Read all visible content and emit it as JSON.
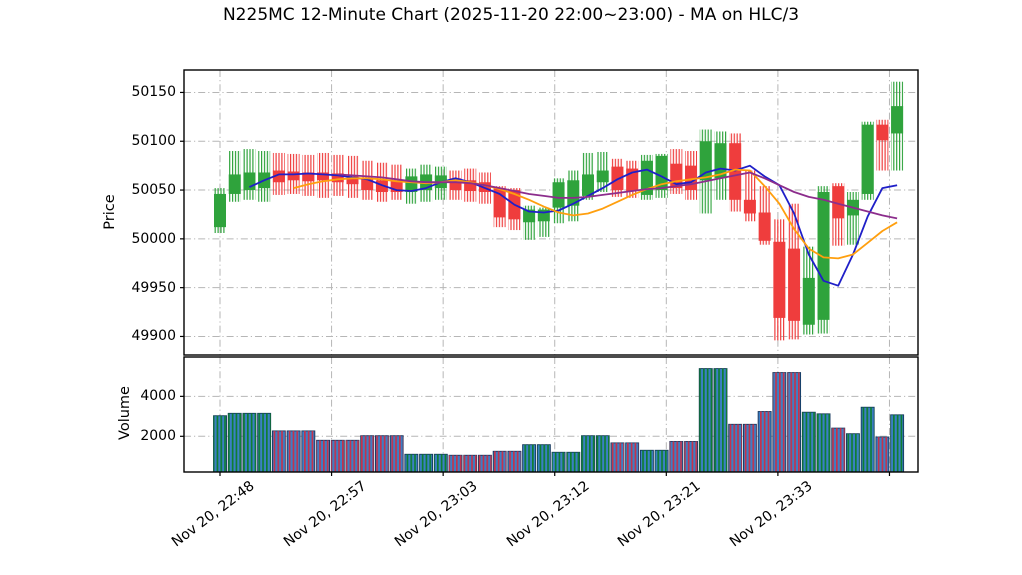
{
  "title": "N225MC 12-Minute Chart (2025-11-20 22:00~23:00) - MA on HLC/3",
  "colors": {
    "background": "#ffffff",
    "up": "#2fa33c",
    "down": "#ef3d3d",
    "volume_fill": "#3b7fc4",
    "volume_edge": "#14365c",
    "volume_hatch_up": "#0e7e33",
    "volume_hatch_down": "#c2334d",
    "ma_fast": "#1f1fc8",
    "ma_mid": "#ff9f0e",
    "ma_slow": "#8c2d8c",
    "grid": "#b6b6b6",
    "spine": "#000000"
  },
  "axes": {
    "price": {
      "label": "Price",
      "ticks": [
        50150,
        50100,
        50050,
        50000,
        49950,
        49900
      ]
    },
    "volume": {
      "label": "Volume",
      "ticks": [
        4000,
        2000
      ]
    },
    "x": {
      "ticks": [
        {
          "pos": 0,
          "label": "Nov 20, 22:48"
        },
        {
          "pos": 7.58,
          "label": "Nov 20, 22:57"
        },
        {
          "pos": 15.16,
          "label": "Nov 20, 23:03"
        },
        {
          "pos": 22.74,
          "label": "Nov 20, 23:12"
        },
        {
          "pos": 30.32,
          "label": "Nov 20, 23:21"
        },
        {
          "pos": 37.9,
          "label": "Nov 20, 23:33"
        },
        {
          "pos": 45.48,
          "label": ""
        }
      ]
    }
  },
  "chart_data": {
    "type": "candlestick+volume",
    "title": "N225MC 12-Minute Chart (2025-11-20 22:00~23:00) - MA on HLC/3",
    "price_ylim": [
      49881,
      50173
    ],
    "volume_ylim": [
      213,
      5970
    ],
    "grid": true,
    "ohlcv_columns": [
      "open",
      "high",
      "low",
      "close",
      "volume"
    ],
    "candles": [
      [
        50012,
        50052,
        50006,
        50046,
        3030
      ],
      [
        50046,
        50090,
        50038,
        50066,
        3150
      ],
      [
        50050,
        50092,
        50040,
        50068,
        3150
      ],
      [
        50052,
        50090,
        50038,
        50068,
        3150
      ],
      [
        50070,
        50088,
        50045,
        50058,
        2270
      ],
      [
        50069,
        50087,
        50046,
        50060,
        2270
      ],
      [
        50068,
        50086,
        50044,
        50059,
        2270
      ],
      [
        50068,
        50088,
        50042,
        50060,
        1800
      ],
      [
        50067,
        50086,
        50044,
        50058,
        1800
      ],
      [
        50064,
        50085,
        50042,
        50056,
        1800
      ],
      [
        50062,
        50080,
        50040,
        50050,
        2030
      ],
      [
        50060,
        50078,
        50038,
        50048,
        2030
      ],
      [
        50060,
        50076,
        50040,
        50048,
        2030
      ],
      [
        50048,
        50072,
        50036,
        50064,
        1100
      ],
      [
        50050,
        50076,
        50038,
        50066,
        1100
      ],
      [
        50052,
        50074,
        50040,
        50065,
        1100
      ],
      [
        50062,
        50070,
        50040,
        50050,
        1050
      ],
      [
        50060,
        50072,
        50038,
        50049,
        1050
      ],
      [
        50058,
        50068,
        50036,
        50048,
        1050
      ],
      [
        50052,
        50054,
        50012,
        50022,
        1250
      ],
      [
        50050,
        50052,
        50009,
        50020,
        1250
      ],
      [
        50017,
        50034,
        49999,
        50030,
        1580
      ],
      [
        50018,
        50032,
        50002,
        50030,
        1580
      ],
      [
        50032,
        50062,
        50016,
        50058,
        1200
      ],
      [
        50034,
        50070,
        50018,
        50060,
        1200
      ],
      [
        50044,
        50088,
        50040,
        50066,
        2030
      ],
      [
        50058,
        50089,
        50048,
        50070,
        2030
      ],
      [
        50074,
        50082,
        50043,
        50050,
        1670
      ],
      [
        50072,
        50080,
        50042,
        50049,
        1670
      ],
      [
        50045,
        50086,
        50040,
        50080,
        1300
      ],
      [
        50050,
        50087,
        50042,
        50085,
        1300
      ],
      [
        50077,
        50092,
        50046,
        50052,
        1740
      ],
      [
        50075,
        50090,
        50040,
        50050,
        1740
      ],
      [
        50060,
        50112,
        50026,
        50100,
        5390
      ],
      [
        50062,
        50110,
        50040,
        50098,
        5390
      ],
      [
        50098,
        50108,
        50028,
        50040,
        2600
      ],
      [
        50040,
        50070,
        50018,
        50026,
        2600
      ],
      [
        50027,
        50054,
        49994,
        49998,
        3240
      ],
      [
        49997,
        50020,
        49896,
        49919,
        5190
      ],
      [
        49990,
        50036,
        49897,
        49916,
        5190
      ],
      [
        49912,
        49992,
        49902,
        49960,
        3205
      ],
      [
        49917,
        50054,
        49903,
        50048,
        3125
      ],
      [
        50054,
        50057,
        49993,
        50021,
        2410
      ],
      [
        50024,
        50048,
        49994,
        50040,
        2130
      ],
      [
        50046,
        50120,
        50040,
        50117,
        3455
      ],
      [
        50117,
        50122,
        50070,
        50101,
        1965
      ],
      [
        50108,
        50161,
        50070,
        50136,
        3075
      ]
    ],
    "ma_series": [
      {
        "name": "ma-fast",
        "color_key": "ma_fast",
        "values": [
          null,
          null,
          50053,
          50060,
          50066,
          50066,
          50067,
          50066,
          50065,
          50063,
          50061,
          50055,
          50050,
          50049,
          50052,
          50058,
          50062,
          50058,
          50052,
          50046,
          50035,
          50028,
          50027,
          50029,
          50036,
          50044,
          50052,
          50061,
          50068,
          50071,
          50064,
          50056,
          50058,
          50068,
          50072,
          50070,
          50075,
          50064,
          50055,
          50026,
          49984,
          49957,
          49952,
          49984,
          50023,
          50052,
          50055
        ]
      },
      {
        "name": "ma-mid",
        "color_key": "ma_mid",
        "values": [
          null,
          null,
          null,
          null,
          null,
          50052,
          50056,
          50059,
          50061,
          50062,
          50062,
          50061,
          50059,
          50058,
          50057,
          50058,
          50060,
          50058,
          50055,
          50051,
          50046,
          50040,
          50033,
          50027,
          50024,
          50026,
          50031,
          50038,
          50045,
          50051,
          50056,
          50059,
          50061,
          50063,
          50066,
          50071,
          50070,
          50054,
          50036,
          50010,
          49990,
          49981,
          49980,
          49984,
          49996,
          50008,
          50017
        ]
      },
      {
        "name": "ma-slow",
        "color_key": "ma_slow",
        "values": [
          null,
          null,
          null,
          null,
          null,
          null,
          null,
          null,
          50066,
          50065,
          50064,
          50063,
          50061,
          50059,
          50058,
          50058,
          50058,
          50057,
          50055,
          50052,
          50049,
          50046,
          50044,
          50042,
          50042,
          50043,
          50045,
          50047,
          50049,
          50051,
          50052,
          50054,
          50056,
          50059,
          50062,
          50065,
          50068,
          50062,
          50055,
          50048,
          50043,
          50040,
          50036,
          50032,
          50028,
          50024,
          50021
        ]
      }
    ]
  }
}
